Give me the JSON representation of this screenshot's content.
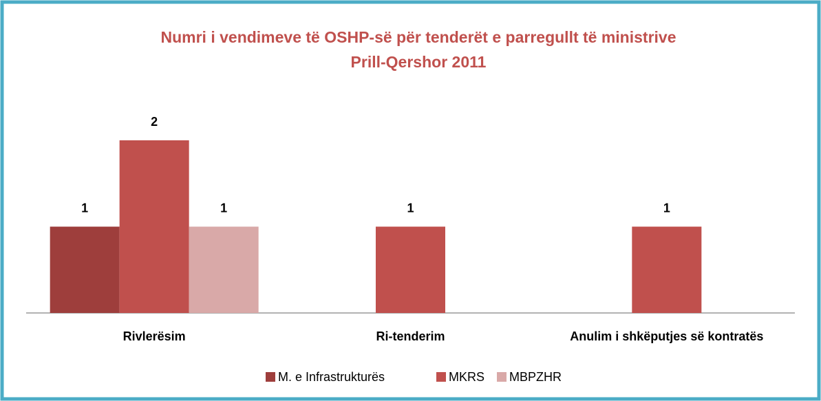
{
  "chart_data": {
    "type": "bar",
    "title": "Numri i vendimeve të OSHP-së për tenderët e parregullt të  ministrive",
    "subtitle": "Prill-Qershor 2011",
    "categories": [
      "Rivlerësim",
      "Ri-tenderim",
      "Anulim i shkëputjes së kontratës"
    ],
    "series": [
      {
        "name": "M. e Infrastrukturës",
        "color": "#9e3e3c",
        "values": [
          1,
          null,
          null
        ]
      },
      {
        "name": "MKRS",
        "color": "#c0504d",
        "values": [
          2,
          1,
          1
        ]
      },
      {
        "name": "MBPZHR",
        "color": "#d9a9a8",
        "values": [
          1,
          null,
          null
        ]
      }
    ],
    "legend": "bottom"
  }
}
